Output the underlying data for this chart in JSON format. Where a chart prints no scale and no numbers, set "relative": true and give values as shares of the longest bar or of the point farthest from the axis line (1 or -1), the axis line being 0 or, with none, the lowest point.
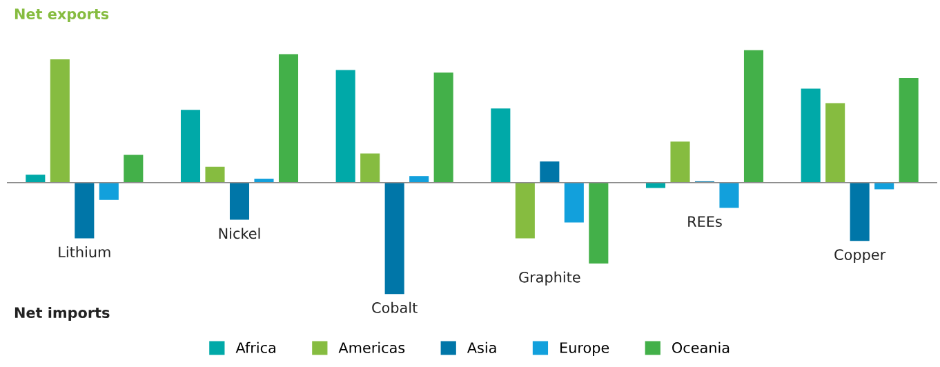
{
  "chart_data": {
    "type": "bar",
    "relative": true,
    "categories": [
      "Lithium",
      "Nickel",
      "Cobalt",
      "Graphite",
      "REEs",
      "Copper"
    ],
    "series": [
      {
        "name": "Africa",
        "color": "#00a9a8",
        "values": [
          0.06,
          0.55,
          0.85,
          0.56,
          -0.04,
          0.71
        ]
      },
      {
        "name": "Americas",
        "color": "#86bc40",
        "values": [
          0.93,
          0.12,
          0.22,
          -0.42,
          0.31,
          0.6
        ]
      },
      {
        "name": "Asia",
        "color": "#0076a8",
        "values": [
          -0.42,
          -0.28,
          -0.84,
          0.16,
          0.01,
          -0.44
        ]
      },
      {
        "name": "Europe",
        "color": "#12a0dc",
        "values": [
          -0.13,
          0.03,
          0.05,
          -0.3,
          -0.19,
          -0.05
        ]
      },
      {
        "name": "Oceania",
        "color": "#43b049",
        "values": [
          0.21,
          0.97,
          0.83,
          -0.61,
          1,
          0.79
        ]
      }
    ],
    "annotations": [
      "Net exports",
      "Net imports"
    ],
    "legend": "bottom",
    "grid": false
  }
}
